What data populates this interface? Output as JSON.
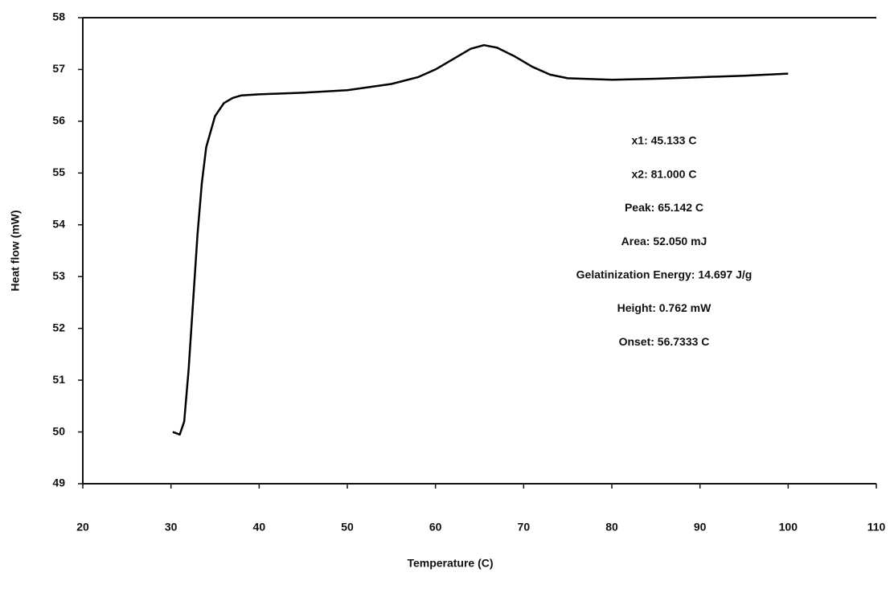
{
  "chart_data": {
    "type": "line",
    "xlabel": "Temperature (C)",
    "ylabel": "Heat flow (mW)",
    "x": [
      30.2,
      31,
      31.5,
      32,
      32.5,
      33,
      33.5,
      34,
      35,
      36,
      37,
      38,
      40,
      45,
      50,
      55,
      58,
      60,
      62,
      64,
      65.5,
      67,
      69,
      71,
      73,
      75,
      80,
      85,
      90,
      95,
      100
    ],
    "series": [
      {
        "color": "#000000",
        "values": [
          50.0,
          49.95,
          50.2,
          51.2,
          52.5,
          53.8,
          54.8,
          55.5,
          56.1,
          56.35,
          56.45,
          56.5,
          56.52,
          56.55,
          56.6,
          56.72,
          56.85,
          57.0,
          57.2,
          57.4,
          57.47,
          57.42,
          57.25,
          57.05,
          56.9,
          56.83,
          56.8,
          56.82,
          56.85,
          56.88,
          56.92
        ]
      }
    ],
    "xlim": [
      20,
      110
    ],
    "xticks": [
      20,
      30,
      40,
      50,
      60,
      70,
      80,
      90,
      100,
      110
    ],
    "ylim": [
      49,
      58
    ],
    "yticks": [
      49,
      50,
      51,
      52,
      53,
      54,
      55,
      56,
      57,
      58
    ],
    "annotations": [
      "x1: 45.133 C",
      "x2: 81.000 C",
      "Peak: 65.142 C",
      "Area: 52.050 mJ",
      "Gelatinization Energy: 14.697 J/g",
      "Height: 0.762 mW",
      "Onset: 56.7333 C"
    ]
  }
}
